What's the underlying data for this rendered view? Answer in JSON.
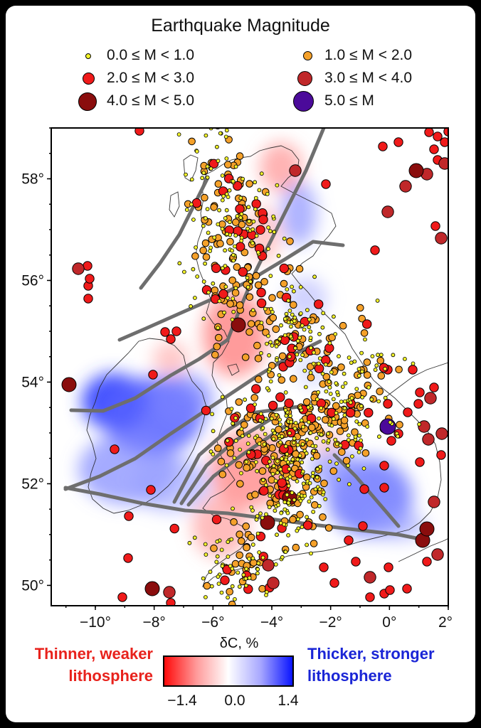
{
  "legend": {
    "title": "Earthquake Magnitude",
    "items": [
      {
        "label": "0.0 ≤ M < 1.0",
        "color": "#f3f42a",
        "size": "smallest"
      },
      {
        "label": "1.0 ≤ M < 2.0",
        "color": "#f5a12a",
        "size": "small"
      },
      {
        "label": "2.0 ≤ M < 3.0",
        "color": "#f01a1a",
        "size": "medium"
      },
      {
        "label": "3.0 ≤ M < 4.0",
        "color": "#c0282a",
        "size": "large"
      },
      {
        "label": "4.0 ≤ M < 5.0",
        "color": "#8a0d0d",
        "size": "larger"
      },
      {
        "label": "5.0 ≤ M",
        "color": "#4b0a9a",
        "size": "largest"
      }
    ]
  },
  "map": {
    "lat_ticks": [
      "50°",
      "52°",
      "54°",
      "56°",
      "58°"
    ],
    "lon_ticks": [
      "−10°",
      "−8°",
      "−6°",
      "−4°",
      "−2°",
      "0°",
      "2°"
    ],
    "lon_range": [
      -11.5,
      2.0
    ],
    "lat_range": [
      49.6,
      59.0
    ],
    "fault_color": "#6e6e6e"
  },
  "colorbar": {
    "title": "δC, %",
    "min_label": "−1.4",
    "mid_label": "0.0",
    "max_label": "1.4",
    "low_color": "#ff0a0a",
    "high_color": "#0a14ff"
  },
  "notes": {
    "left_line1": "Thinner, weaker",
    "left_line2": "lithosphere",
    "right_line1": "Thicker, stronger",
    "right_line2": "lithosphere"
  }
}
